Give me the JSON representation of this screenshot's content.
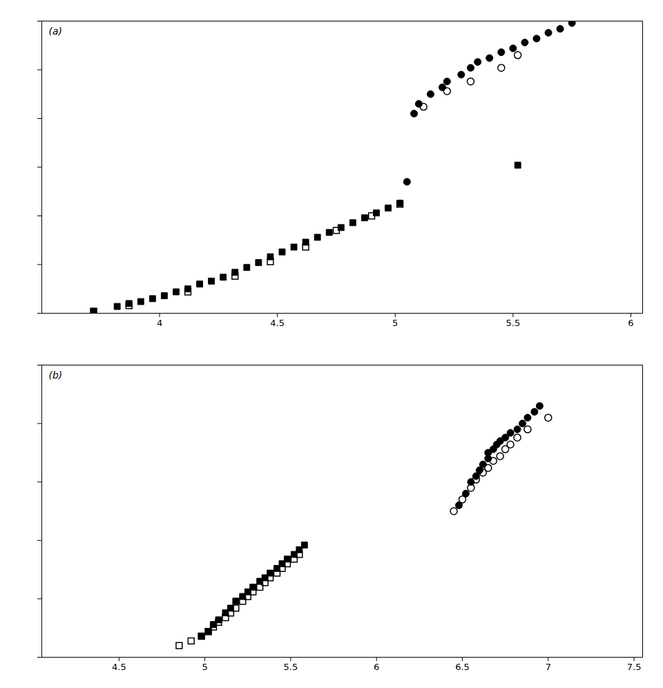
{
  "chart_data": [
    {
      "type": "scatter",
      "annotation": "(a)",
      "xlim": [
        3.5,
        6.05
      ],
      "xticks": [
        4,
        4.5,
        5,
        5.5,
        6
      ],
      "ylim": [
        3.5,
        6.5
      ],
      "yticks": [
        3.5,
        4,
        4.5,
        5,
        5.5,
        6,
        6.5
      ],
      "tick_labels": "x",
      "series": [
        {
          "marker": "circle",
          "color": "#000000",
          "x": [
            5.05,
            5.08,
            5.1,
            5.15,
            5.2,
            5.22,
            5.28,
            5.32,
            5.35,
            5.4,
            5.45,
            5.5,
            5.55,
            5.6,
            5.65,
            5.7,
            5.75
          ],
          "values": [
            4.85,
            5.55,
            5.65,
            5.75,
            5.82,
            5.88,
            5.95,
            6.02,
            6.08,
            6.12,
            6.18,
            6.22,
            6.28,
            6.32,
            6.38,
            6.42,
            6.48
          ]
        },
        {
          "marker": "open_circle",
          "color": "#000000",
          "x": [
            5.12,
            5.22,
            5.32,
            5.45,
            5.52
          ],
          "values": [
            5.62,
            5.78,
            5.88,
            6.02,
            6.15
          ]
        },
        {
          "marker": "square",
          "color": "#000000",
          "x": [
            3.72,
            3.82,
            3.87,
            3.92,
            3.97,
            4.02,
            4.07,
            4.12,
            4.17,
            4.22,
            4.27,
            4.32,
            4.37,
            4.42,
            4.47,
            4.52,
            4.57,
            4.62,
            4.67,
            4.72,
            4.77,
            4.82,
            4.87,
            4.92,
            4.97,
            5.02,
            5.52
          ],
          "values": [
            3.52,
            3.57,
            3.6,
            3.62,
            3.65,
            3.68,
            3.72,
            3.75,
            3.8,
            3.83,
            3.87,
            3.92,
            3.97,
            4.02,
            4.08,
            4.13,
            4.18,
            4.23,
            4.28,
            4.33,
            4.38,
            4.43,
            4.48,
            4.53,
            4.58,
            4.63,
            5.02
          ]
        },
        {
          "marker": "open_square",
          "color": "#000000",
          "x": [
            3.72,
            3.87,
            4.12,
            4.32,
            4.47,
            4.62,
            4.75,
            4.9,
            5.02
          ],
          "values": [
            3.52,
            3.58,
            3.72,
            3.88,
            4.03,
            4.18,
            4.35,
            4.5,
            4.62
          ]
        }
      ]
    },
    {
      "type": "scatter",
      "annotation": "(b)",
      "xlim": [
        4.05,
        7.55
      ],
      "xticks": [
        4.5,
        5,
        5.5,
        6,
        6.5,
        7,
        7.5
      ],
      "ylim": [
        5,
        7.5
      ],
      "yticks": [
        5,
        5.5,
        6,
        6.5,
        7,
        7.5
      ],
      "tick_labels": "x",
      "series": [
        {
          "marker": "circle",
          "color": "#000000",
          "x": [
            6.48,
            6.52,
            6.55,
            6.58,
            6.6,
            6.62,
            6.65,
            6.65,
            6.68,
            6.7,
            6.72,
            6.75,
            6.78,
            6.82,
            6.85,
            6.88,
            6.92,
            6.95
          ],
          "values": [
            6.3,
            6.4,
            6.5,
            6.55,
            6.6,
            6.65,
            6.7,
            6.75,
            6.78,
            6.82,
            6.85,
            6.88,
            6.92,
            6.95,
            7.0,
            7.05,
            7.1,
            7.15
          ]
        },
        {
          "marker": "open_circle",
          "color": "#000000",
          "x": [
            6.45,
            6.5,
            6.55,
            6.58,
            6.62,
            6.65,
            6.68,
            6.72,
            6.75,
            6.78,
            6.82,
            6.88,
            7.0
          ],
          "values": [
            6.25,
            6.35,
            6.45,
            6.52,
            6.58,
            6.62,
            6.68,
            6.72,
            6.78,
            6.82,
            6.88,
            6.95,
            7.05
          ]
        },
        {
          "marker": "square",
          "color": "#000000",
          "x": [
            4.98,
            5.02,
            5.05,
            5.08,
            5.12,
            5.15,
            5.18,
            5.22,
            5.25,
            5.28,
            5.32,
            5.35,
            5.38,
            5.42,
            5.45,
            5.48,
            5.52,
            5.55,
            5.58
          ],
          "values": [
            5.18,
            5.22,
            5.28,
            5.32,
            5.38,
            5.42,
            5.48,
            5.52,
            5.56,
            5.6,
            5.65,
            5.68,
            5.72,
            5.76,
            5.8,
            5.84,
            5.88,
            5.92,
            5.96
          ]
        },
        {
          "marker": "open_square",
          "color": "#000000",
          "x": [
            4.85,
            4.92,
            4.98,
            5.02,
            5.05,
            5.08,
            5.12,
            5.15,
            5.18,
            5.22,
            5.25,
            5.28,
            5.32,
            5.35,
            5.38,
            5.42,
            5.45,
            5.48,
            5.52,
            5.55
          ],
          "values": [
            5.1,
            5.14,
            5.18,
            5.22,
            5.26,
            5.3,
            5.34,
            5.38,
            5.42,
            5.48,
            5.52,
            5.56,
            5.6,
            5.64,
            5.68,
            5.72,
            5.76,
            5.8,
            5.84,
            5.88
          ]
        }
      ]
    }
  ]
}
